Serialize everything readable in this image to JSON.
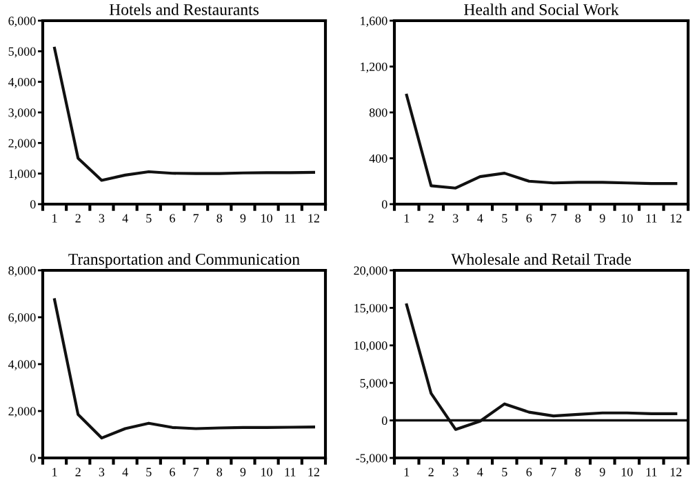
{
  "chart_data": [
    {
      "type": "line",
      "title": "Hotels and Restaurants",
      "categories": [
        "1",
        "2",
        "3",
        "4",
        "5",
        "6",
        "7",
        "8",
        "9",
        "10",
        "11",
        "12"
      ],
      "series": [
        {
          "color": "#111111",
          "values": [
            5100,
            1500,
            780,
            950,
            1060,
            1010,
            1000,
            1000,
            1020,
            1030,
            1030,
            1040
          ]
        }
      ],
      "ylim": [
        0,
        6000
      ],
      "yticks": [
        {
          "value": 0,
          "label": "0"
        },
        {
          "value": 1000,
          "label": "1,000"
        },
        {
          "value": 2000,
          "label": "2,000"
        },
        {
          "value": 3000,
          "label": "3,000"
        },
        {
          "value": 4000,
          "label": "4,000"
        },
        {
          "value": 5000,
          "label": "5,000"
        },
        {
          "value": 6000,
          "label": "6,000"
        }
      ],
      "grid": false,
      "legend": false,
      "marker": "none",
      "line_style": "solid"
    },
    {
      "type": "line",
      "title": "Health and Social Work",
      "categories": [
        "1",
        "2",
        "3",
        "4",
        "5",
        "6",
        "7",
        "8",
        "9",
        "10",
        "11",
        "12"
      ],
      "series": [
        {
          "color": "#111111",
          "values": [
            950,
            160,
            140,
            240,
            270,
            200,
            185,
            190,
            190,
            185,
            180,
            180
          ]
        }
      ],
      "ylim": [
        0,
        1600
      ],
      "yticks": [
        {
          "value": 0,
          "label": "0"
        },
        {
          "value": 400,
          "label": "400"
        },
        {
          "value": 800,
          "label": "800"
        },
        {
          "value": 1200,
          "label": "1,200"
        },
        {
          "value": 1600,
          "label": "1,600"
        }
      ],
      "grid": false,
      "legend": false,
      "marker": "none",
      "line_style": "solid"
    },
    {
      "type": "line",
      "title": "Transportation and Communication",
      "categories": [
        "1",
        "2",
        "3",
        "4",
        "5",
        "6",
        "7",
        "8",
        "9",
        "10",
        "11",
        "12"
      ],
      "series": [
        {
          "color": "#111111",
          "values": [
            6750,
            1850,
            850,
            1250,
            1480,
            1300,
            1250,
            1280,
            1300,
            1300,
            1310,
            1320
          ]
        }
      ],
      "ylim": [
        0,
        8000
      ],
      "yticks": [
        {
          "value": 0,
          "label": "0"
        },
        {
          "value": 2000,
          "label": "2,000"
        },
        {
          "value": 4000,
          "label": "4,000"
        },
        {
          "value": 6000,
          "label": "6,000"
        },
        {
          "value": 8000,
          "label": "8,000"
        }
      ],
      "grid": false,
      "legend": false,
      "marker": "none",
      "line_style": "solid"
    },
    {
      "type": "line",
      "title": "Wholesale and Retail Trade",
      "categories": [
        "1",
        "2",
        "3",
        "4",
        "5",
        "6",
        "7",
        "8",
        "9",
        "10",
        "11",
        "12"
      ],
      "series": [
        {
          "color": "#111111",
          "values": [
            15400,
            3600,
            -1200,
            -100,
            2200,
            1100,
            600,
            800,
            1000,
            1000,
            900,
            900
          ]
        }
      ],
      "ylim": [
        -5000,
        20000
      ],
      "yticks": [
        {
          "value": -5000,
          "label": "-5,000"
        },
        {
          "value": 0,
          "label": "0"
        },
        {
          "value": 5000,
          "label": "5,000"
        },
        {
          "value": 10000,
          "label": "10,000"
        },
        {
          "value": 15000,
          "label": "15,000"
        },
        {
          "value": 20000,
          "label": "20,000"
        }
      ],
      "ref_lines": [
        {
          "axis": "y",
          "value": 0,
          "color": "#111111",
          "line_style": "solid"
        }
      ],
      "grid": false,
      "legend": false,
      "marker": "none",
      "line_style": "solid"
    }
  ]
}
